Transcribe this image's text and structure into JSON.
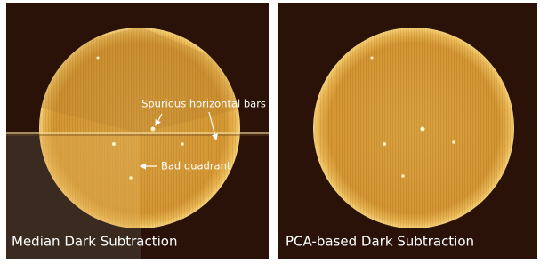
{
  "panels": [
    {
      "label": "Median Dark Subtraction",
      "annotations": [
        "Spurious horizontal bars",
        "Bad quadrant"
      ]
    },
    {
      "label": "PCA-based Dark Subtraction"
    }
  ]
}
